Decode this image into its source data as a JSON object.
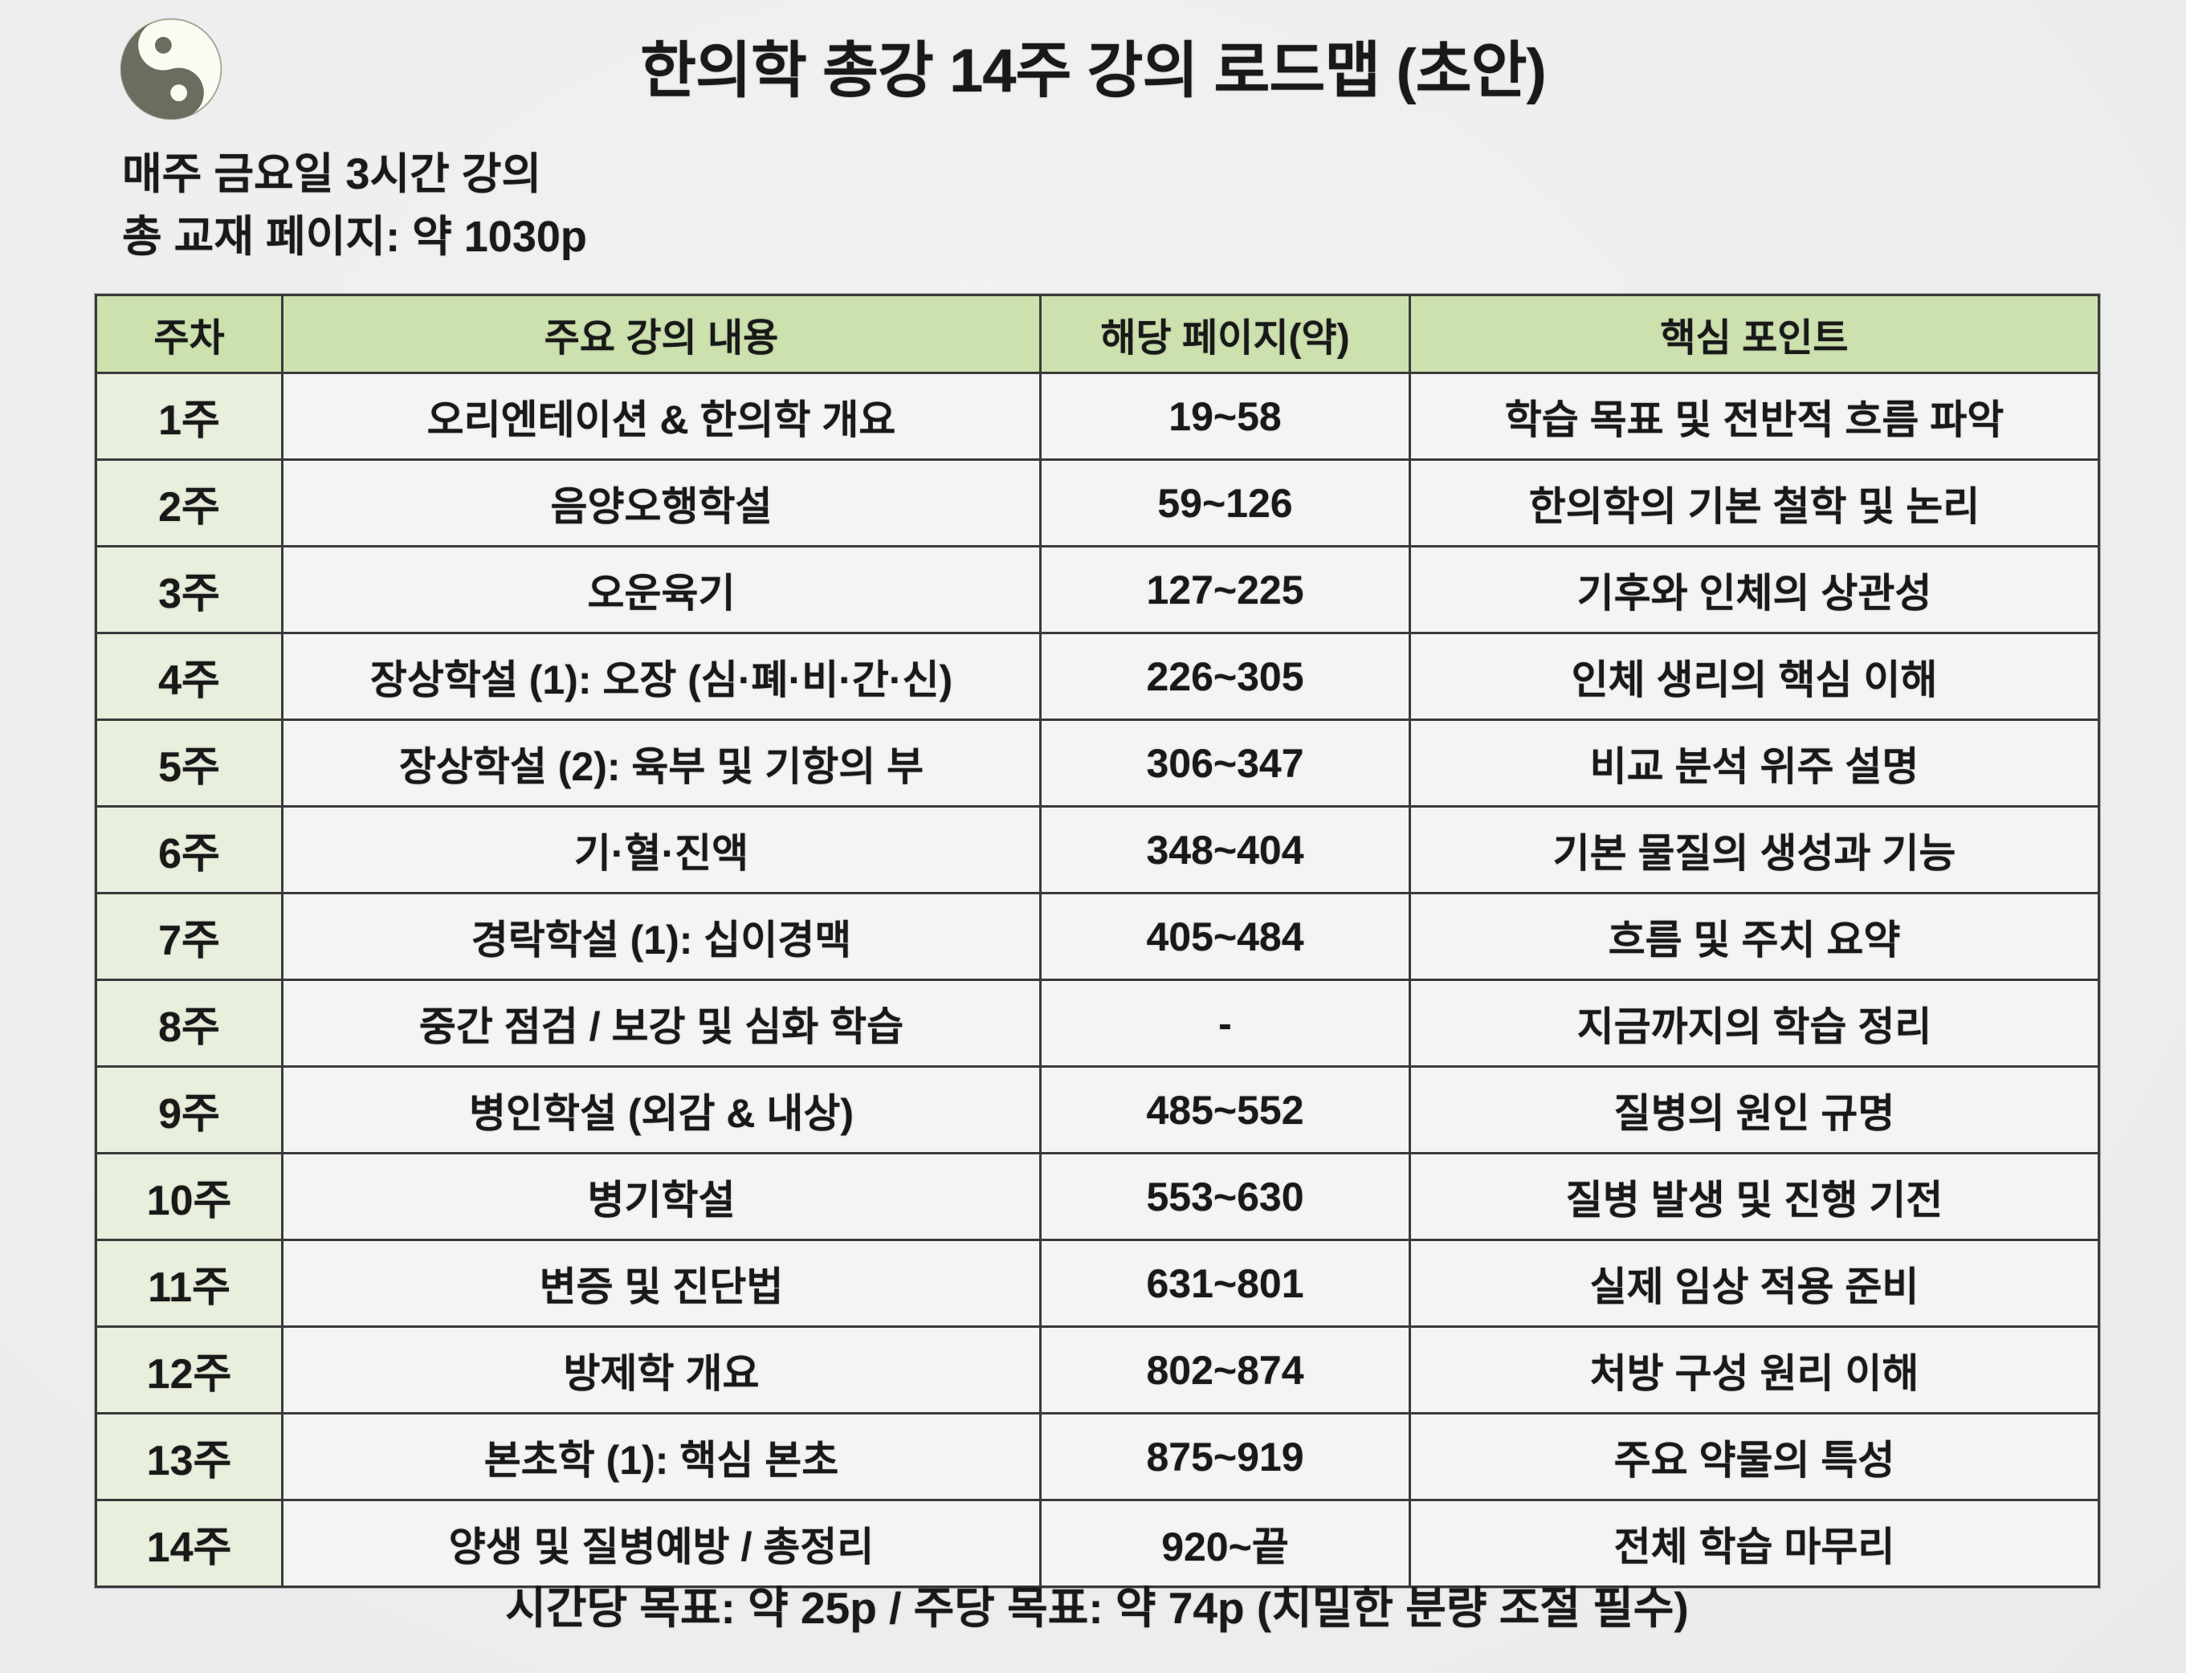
{
  "title": "한의학 총강 14주 강의 로드맵 (초안)",
  "subtitle": {
    "line1": "매주 금요일 3시간 강의",
    "line2": "총 교재 페이지: 약 1030p"
  },
  "logo": {
    "name": "yin-yang-symbol"
  },
  "table": {
    "headers": [
      "주차",
      "주요 강의 내용",
      "해당 페이지(약)",
      "핵심 포인트"
    ],
    "rows": [
      {
        "week": "1주",
        "content": "오리엔테이션 & 한의학 개요",
        "pages": "19~58",
        "point": "학습 목표 및 전반적 흐름 파악"
      },
      {
        "week": "2주",
        "content": "음양오행학설",
        "pages": "59~126",
        "point": "한의학의 기본 철학 및 논리"
      },
      {
        "week": "3주",
        "content": "오운육기",
        "pages": "127~225",
        "point": "기후와 인체의 상관성"
      },
      {
        "week": "4주",
        "content": "장상학설 (1): 오장 (심·폐·비·간·신)",
        "pages": "226~305",
        "point": "인체 생리의 핵심 이해"
      },
      {
        "week": "5주",
        "content": "장상학설 (2): 육부 및 기항의 부",
        "pages": "306~347",
        "point": "비교 분석 위주 설명"
      },
      {
        "week": "6주",
        "content": "기·혈·진액",
        "pages": "348~404",
        "point": "기본 물질의 생성과 기능"
      },
      {
        "week": "7주",
        "content": "경락학설 (1): 십이경맥",
        "pages": "405~484",
        "point": "흐름 및 주치 요약"
      },
      {
        "week": "8주",
        "content": "중간 점검 / 보강 및 심화 학습",
        "pages": "-",
        "point": "지금까지의 학습 정리"
      },
      {
        "week": "9주",
        "content": "병인학설 (외감 & 내상)",
        "pages": "485~552",
        "point": "질병의 원인 규명"
      },
      {
        "week": "10주",
        "content": "병기학설",
        "pages": "553~630",
        "point": "질병 발생 및 진행 기전"
      },
      {
        "week": "11주",
        "content": "변증 및 진단법",
        "pages": "631~801",
        "point": "실제 임상 적용 준비"
      },
      {
        "week": "12주",
        "content": "방제학 개요",
        "pages": "802~874",
        "point": "처방 구성 원리 이해"
      },
      {
        "week": "13주",
        "content": "본초학 (1): 핵심 본초",
        "pages": "875~919",
        "point": "주요 약물의 특성"
      },
      {
        "week": "14주",
        "content": "양생 및 질병예방 / 총정리",
        "pages": "920~끝",
        "point": "전체 학습 마무리"
      }
    ]
  },
  "footer": "시간당 목표: 약 25p / 주당 목표: 약 74p (치밀한 분량 조절 필수)",
  "colors": {
    "header_bg": "#cde1af",
    "week_bg": "#e8efdc",
    "cell_bg": "#f3f4f5",
    "border": "#3a3a3a",
    "page_bg": "#eef0f0",
    "taiji_dark": "#6c6d5f",
    "taiji_light": "#fbfbf3"
  }
}
